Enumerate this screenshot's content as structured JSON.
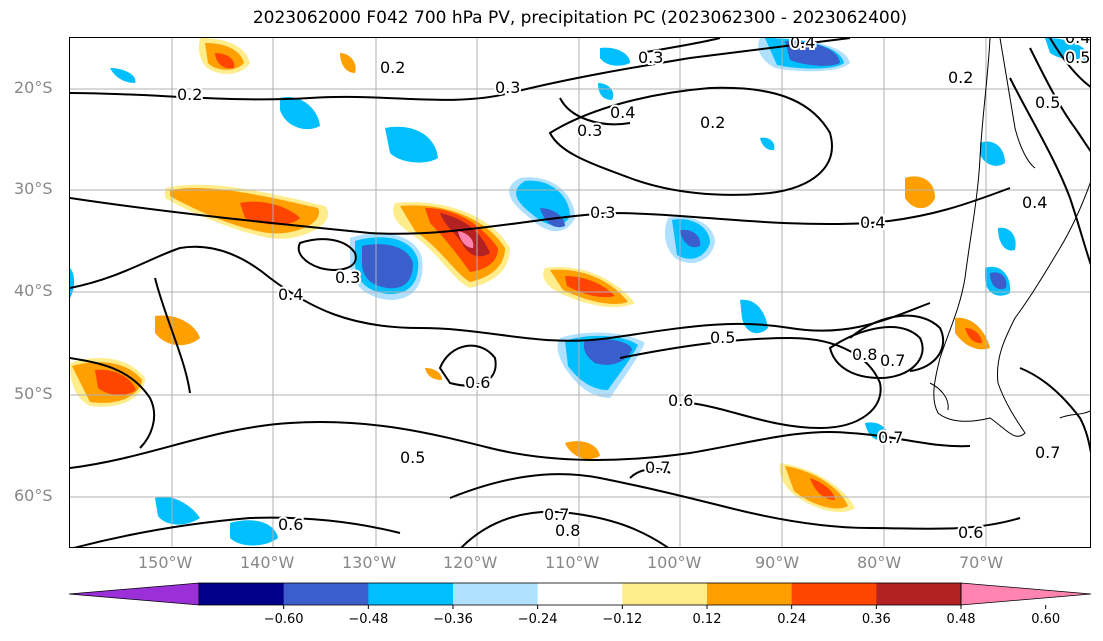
{
  "title": "2023062000 F042 700 hPa PV, precipitation PC (2023062300 - 2023062400)",
  "map": {
    "lat_labels": [
      "20°S",
      "30°S",
      "40°S",
      "50°S",
      "60°S"
    ],
    "lon_labels": [
      "150°W",
      "140°W",
      "130°W",
      "120°W",
      "110°W",
      "100°W",
      "90°W",
      "80°W",
      "70°W"
    ],
    "contour_labels": [
      "0.2",
      "0.2",
      "0.2",
      "0.2",
      "0.3",
      "0.3",
      "0.3",
      "0.3",
      "0.3",
      "0.4",
      "0.4",
      "0.4",
      "0.4",
      "0.4",
      "0.5",
      "0.5",
      "0.5",
      "0.6",
      "0.6",
      "0.6",
      "0.6",
      "0.7",
      "0.7",
      "0.7",
      "0.7",
      "0.8",
      "0.8",
      "0.7",
      "0.5",
      "0.4"
    ]
  },
  "colorbar": {
    "tick_labels": [
      "−0.60",
      "−0.48",
      "−0.36",
      "−0.24",
      "−0.12",
      "0.12",
      "0.24",
      "0.36",
      "0.48",
      "0.60"
    ],
    "colors": [
      "#9b30d9",
      "#00008b",
      "#3a5fcd",
      "#00bfff",
      "#b0e0ff",
      "#ffffff",
      "#ffec8b",
      "#ff9f00",
      "#ff4500",
      "#b22222",
      "#ff85b0"
    ]
  }
}
